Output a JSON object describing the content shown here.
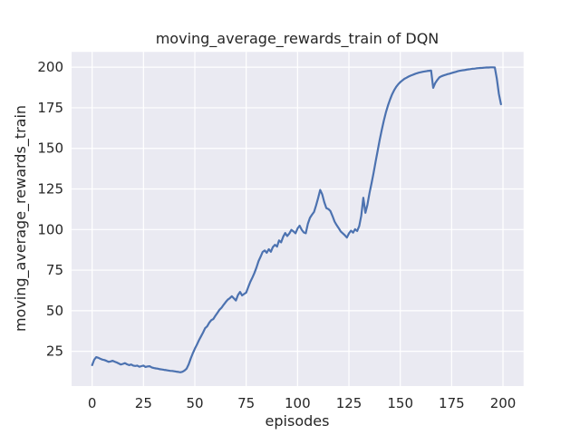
{
  "figure": {
    "background": "#ffffff"
  },
  "chart_data": {
    "type": "line",
    "title": "moving_average_rewards_train of DQN",
    "xlabel": "episodes",
    "ylabel": "moving_average_rewards_train",
    "x_ticks": [
      0,
      25,
      50,
      75,
      100,
      125,
      150,
      175,
      200
    ],
    "y_ticks": [
      25,
      50,
      75,
      100,
      125,
      150,
      175,
      200
    ],
    "xlim": [
      -10,
      210
    ],
    "ylim": [
      3.6,
      209.4
    ],
    "grid": true,
    "legend": "none",
    "colors": {
      "line": "#4c72b0",
      "plot_background": "#eaeaf2",
      "grid": "#ffffff",
      "text": "#262626"
    },
    "series": [
      {
        "name": "moving_average_rewards_train",
        "x": [
          0,
          1,
          2,
          3,
          4,
          5,
          6,
          7,
          8,
          9,
          10,
          11,
          12,
          13,
          14,
          15,
          16,
          17,
          18,
          19,
          20,
          21,
          22,
          23,
          24,
          25,
          26,
          27,
          28,
          29,
          30,
          31,
          32,
          33,
          34,
          35,
          36,
          37,
          38,
          39,
          40,
          41,
          42,
          43,
          44,
          45,
          46,
          47,
          48,
          49,
          50,
          51,
          52,
          53,
          54,
          55,
          56,
          57,
          58,
          59,
          60,
          61,
          62,
          63,
          64,
          65,
          66,
          67,
          68,
          69,
          70,
          71,
          72,
          73,
          74,
          75,
          76,
          77,
          78,
          79,
          80,
          81,
          82,
          83,
          84,
          85,
          86,
          87,
          88,
          89,
          90,
          91,
          92,
          93,
          94,
          95,
          96,
          97,
          98,
          99,
          100,
          101,
          102,
          103,
          104,
          105,
          106,
          107,
          108,
          109,
          110,
          111,
          112,
          113,
          114,
          115,
          116,
          117,
          118,
          119,
          120,
          121,
          122,
          123,
          124,
          125,
          126,
          127,
          128,
          129,
          130,
          131,
          132,
          133,
          134,
          135,
          136,
          137,
          138,
          139,
          140,
          141,
          142,
          143,
          144,
          145,
          146,
          147,
          148,
          149,
          150,
          151,
          152,
          153,
          154,
          155,
          156,
          157,
          158,
          159,
          160,
          161,
          162,
          163,
          164,
          165,
          166,
          167,
          168,
          169,
          170,
          171,
          172,
          173,
          174,
          175,
          176,
          177,
          178,
          179,
          180,
          181,
          182,
          183,
          184,
          185,
          186,
          187,
          188,
          189,
          190,
          191,
          192,
          193,
          194,
          195,
          196,
          197,
          198,
          199
        ],
        "y": [
          16.5,
          19.8,
          21.4,
          21.0,
          20.4,
          19.9,
          19.6,
          19.1,
          18.5,
          18.8,
          19.2,
          18.6,
          18.1,
          17.5,
          16.9,
          17.3,
          17.7,
          17.0,
          16.5,
          16.9,
          16.2,
          16.0,
          16.2,
          15.5,
          15.9,
          16.2,
          15.4,
          15.7,
          15.8,
          15.1,
          14.7,
          14.5,
          14.3,
          14.0,
          13.8,
          13.6,
          13.4,
          13.2,
          13.0,
          12.9,
          12.7,
          12.5,
          12.3,
          12.1,
          12.4,
          13.2,
          14.3,
          17.0,
          20.6,
          23.7,
          26.6,
          29.1,
          31.8,
          34.2,
          36.6,
          39.2,
          40.4,
          42.6,
          44.2,
          44.9,
          46.9,
          48.7,
          50.6,
          51.9,
          53.6,
          55.3,
          56.8,
          57.7,
          58.9,
          57.6,
          56.3,
          59.7,
          61.6,
          59.4,
          60.3,
          61.2,
          64.5,
          67.8,
          70.4,
          73.2,
          76.6,
          80.6,
          83.2,
          86.2,
          87.1,
          85.7,
          87.9,
          86.3,
          89.2,
          90.6,
          89.5,
          93.3,
          92.1,
          95.6,
          97.9,
          96.0,
          97.6,
          99.8,
          98.9,
          97.7,
          100.7,
          102.4,
          99.9,
          98.2,
          97.7,
          103.5,
          107.2,
          109.1,
          110.8,
          114.9,
          119.3,
          124.4,
          121.6,
          116.9,
          113.2,
          112.6,
          111.4,
          108.3,
          104.9,
          102.8,
          100.9,
          98.8,
          97.7,
          96.5,
          95.1,
          97.6,
          99.3,
          98.1,
          100.2,
          99.1,
          102.2,
          108.4,
          119.6,
          110.3,
          115.2,
          122.4,
          128.6,
          134.8,
          141.9,
          148.7,
          155.3,
          161.5,
          167.2,
          172.1,
          176.4,
          180.1,
          183.2,
          185.8,
          187.9,
          189.5,
          190.8,
          191.9,
          192.8,
          193.5,
          194.2,
          194.8,
          195.3,
          195.8,
          196.2,
          196.6,
          196.9,
          197.2,
          197.4,
          197.6,
          197.8,
          197.9,
          187.3,
          190.2,
          192.1,
          193.7,
          194.4,
          194.9,
          195.3,
          195.7,
          196.0,
          196.4,
          196.8,
          197.1,
          197.5,
          197.8,
          198.0,
          198.2,
          198.4,
          198.6,
          198.8,
          199.0,
          199.1,
          199.3,
          199.4,
          199.5,
          199.6,
          199.7,
          199.8,
          199.8,
          199.9,
          199.9,
          199.8,
          193.0,
          183.5,
          177.2
        ]
      }
    ]
  }
}
